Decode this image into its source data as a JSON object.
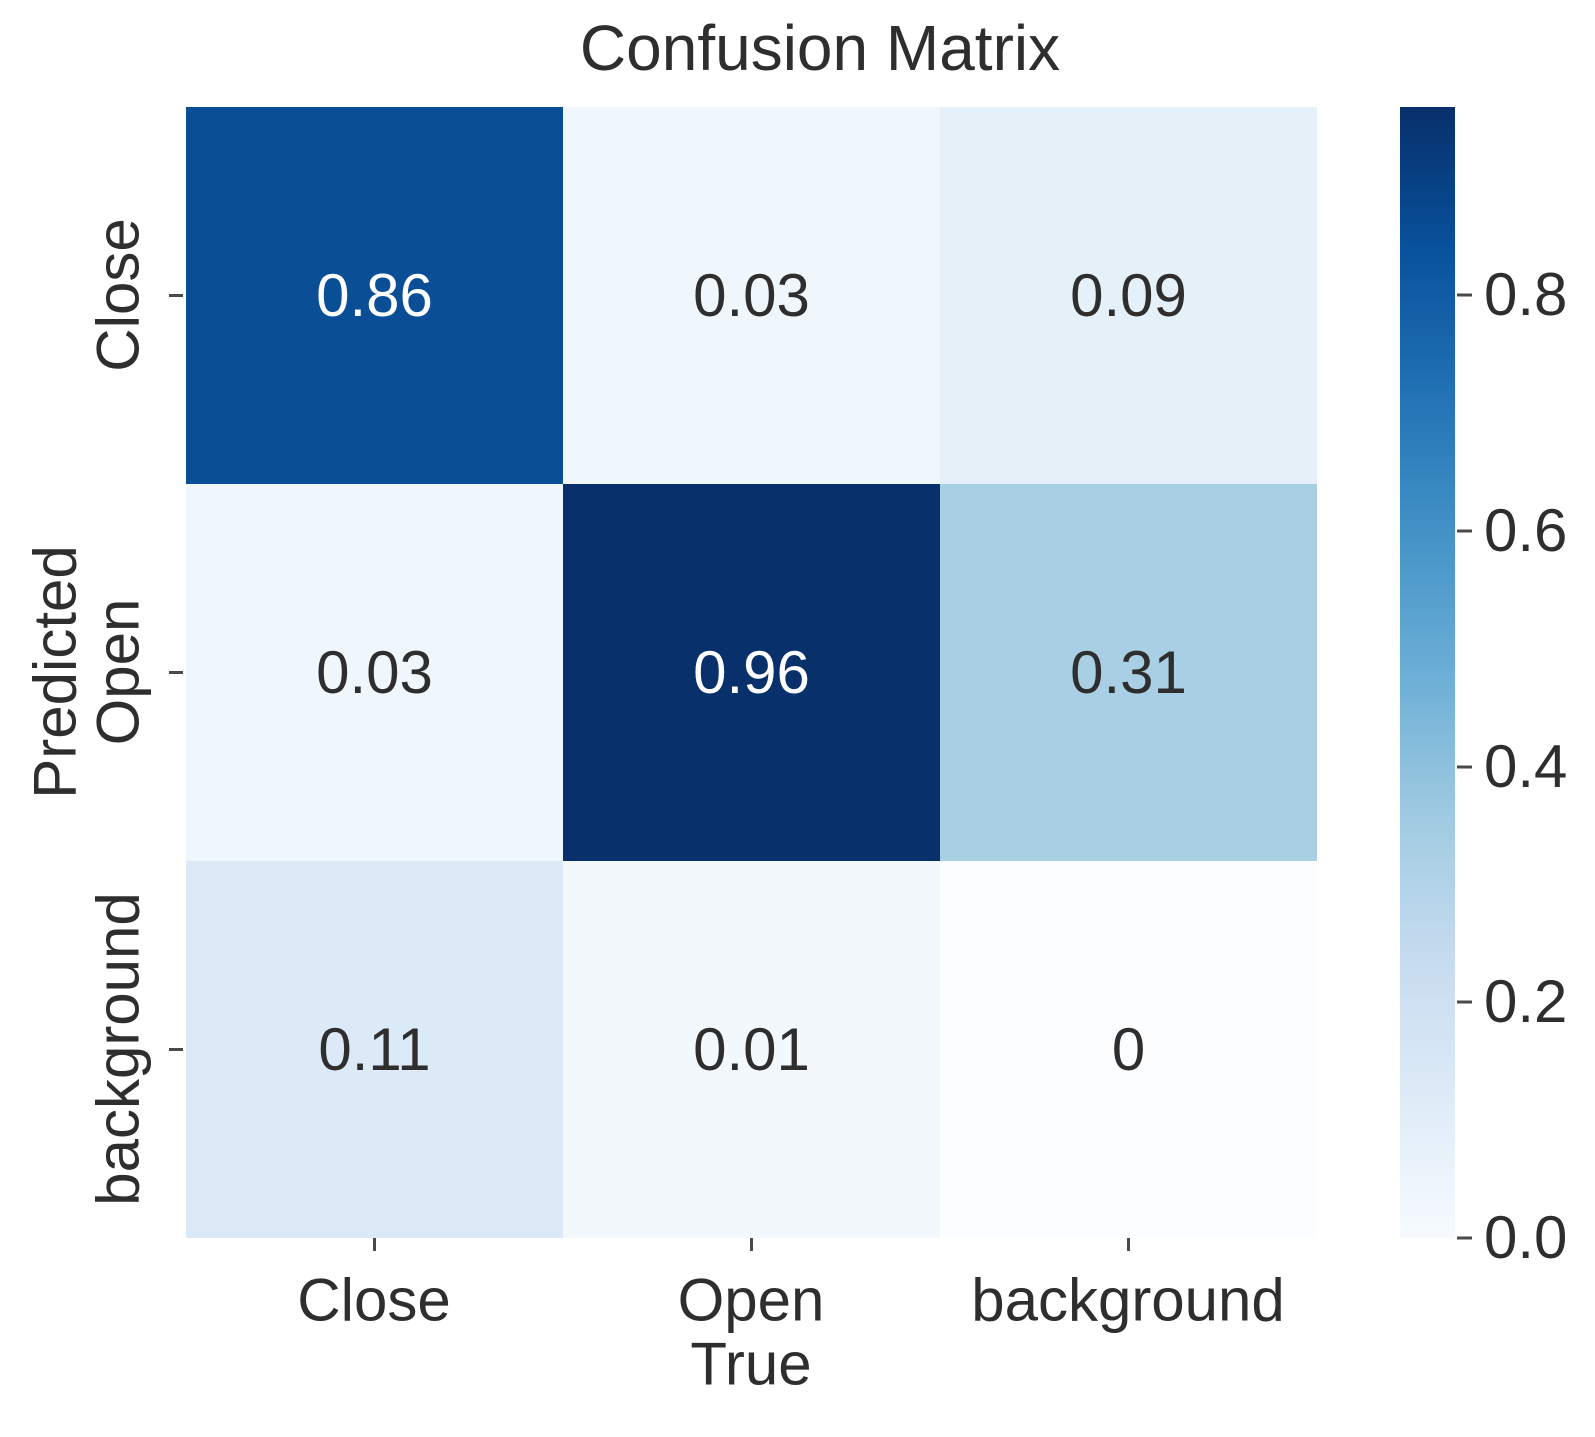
{
  "title": "Confusion Matrix",
  "chart_data": {
    "type": "heatmap",
    "title": "Confusion Matrix",
    "xlabel": "True",
    "ylabel": "Predicted",
    "x_tick_labels": [
      "Close",
      "Open",
      "background"
    ],
    "y_tick_labels": [
      "Close",
      "Open",
      "background"
    ],
    "matrix": [
      [
        0.86,
        0.03,
        0.09
      ],
      [
        0.03,
        0.96,
        0.31
      ],
      [
        0.11,
        0.01,
        0
      ]
    ],
    "colormap": "Blues",
    "vmin": 0.0,
    "vmax": 0.96,
    "grid": false,
    "cells": [
      {
        "row": "Close",
        "col": "Close",
        "value": 0.86,
        "display": "0.86",
        "bg": "#0a4f96",
        "fg": "#ffffff"
      },
      {
        "row": "Close",
        "col": "Open",
        "value": 0.03,
        "display": "0.03",
        "bg": "#eff6fc",
        "fg": "#2e2e2e"
      },
      {
        "row": "Close",
        "col": "background",
        "value": 0.09,
        "display": "0.09",
        "bg": "#e6f0f9",
        "fg": "#2e2e2e"
      },
      {
        "row": "Open",
        "col": "Close",
        "value": 0.03,
        "display": "0.03",
        "bg": "#eff6fc",
        "fg": "#2e2e2e"
      },
      {
        "row": "Open",
        "col": "Open",
        "value": 0.96,
        "display": "0.96",
        "bg": "#08306b",
        "fg": "#ffffff"
      },
      {
        "row": "Open",
        "col": "background",
        "value": 0.31,
        "display": "0.31",
        "bg": "#a9cfe5",
        "fg": "#2e2e2e"
      },
      {
        "row": "background",
        "col": "Close",
        "value": 0.11,
        "display": "0.11",
        "bg": "#dceaf7",
        "fg": "#2e2e2e"
      },
      {
        "row": "background",
        "col": "Open",
        "value": 0.01,
        "display": "0.01",
        "bg": "#f3f8fd",
        "fg": "#2e2e2e"
      },
      {
        "row": "background",
        "col": "background",
        "value": 0,
        "display": "0",
        "bg": "#fbfdff",
        "fg": "#2e2e2e"
      }
    ],
    "colorbar": {
      "position": "right",
      "ticks": [
        0.0,
        0.2,
        0.4,
        0.6,
        0.8
      ],
      "tick_labels": [
        "0.0",
        "0.2",
        "0.4",
        "0.6",
        "0.8"
      ],
      "top_color": "#08306b",
      "bottom_color": "#f7fbff"
    }
  }
}
